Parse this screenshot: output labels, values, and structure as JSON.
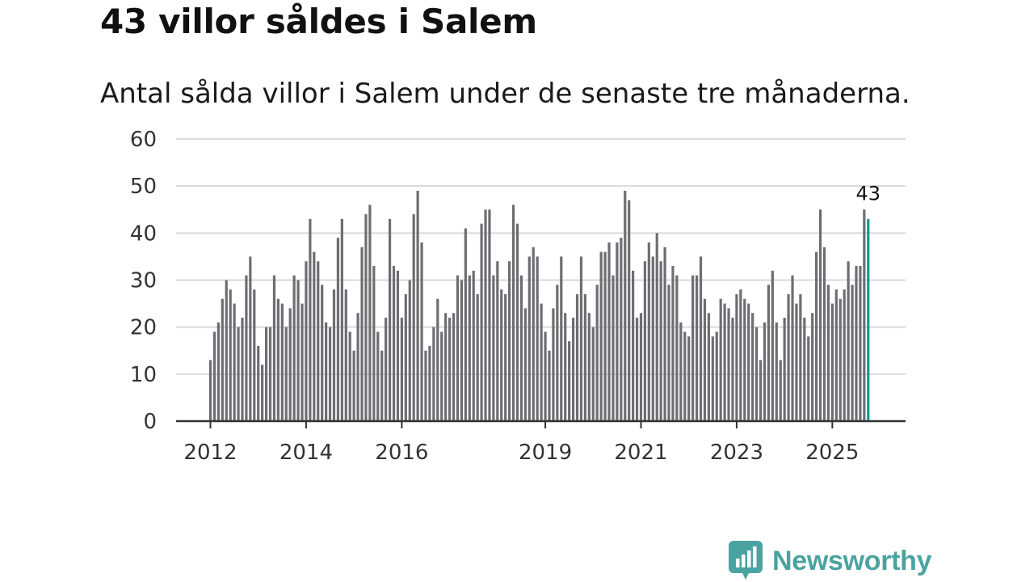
{
  "title": "43 villor såldes i Salem",
  "subtitle": "Antal sålda villor i Salem under de senaste tre månaderna.",
  "brand": {
    "name": "Newsworthy",
    "color": "#4aa3a0",
    "icon": "newsworthy-logo-icon"
  },
  "colors": {
    "bar": "#6e6d72",
    "highlight": "#16968e",
    "grid": "#d9d9d9",
    "axis": "#333333"
  },
  "chart_data": {
    "type": "bar",
    "title": "Antal sålda villor i Salem",
    "xlabel": "",
    "ylabel": "",
    "ylim": [
      0,
      60
    ],
    "yticks": [
      0,
      10,
      20,
      30,
      40,
      50,
      60
    ],
    "start": {
      "year": 2012,
      "month": 1
    },
    "frequency": "monthly",
    "xticks": [
      {
        "label": "2012",
        "index": 0
      },
      {
        "label": "2014",
        "index": 24
      },
      {
        "label": "2016",
        "index": 48
      },
      {
        "label": "2019",
        "index": 84
      },
      {
        "label": "2021",
        "index": 108
      },
      {
        "label": "2023",
        "index": 132
      },
      {
        "label": "2025",
        "index": 156
      }
    ],
    "values": [
      13,
      19,
      21,
      26,
      30,
      28,
      25,
      20,
      22,
      31,
      35,
      28,
      16,
      12,
      20,
      20,
      31,
      26,
      25,
      20,
      24,
      31,
      30,
      25,
      34,
      43,
      36,
      34,
      29,
      21,
      20,
      28,
      39,
      43,
      28,
      19,
      15,
      23,
      37,
      44,
      46,
      33,
      19,
      15,
      22,
      43,
      33,
      32,
      22,
      27,
      30,
      44,
      49,
      38,
      15,
      16,
      20,
      26,
      19,
      23,
      22,
      23,
      31,
      30,
      41,
      31,
      32,
      27,
      42,
      45,
      45,
      31,
      34,
      28,
      27,
      34,
      46,
      42,
      31,
      24,
      35,
      37,
      35,
      25,
      19,
      15,
      24,
      29,
      35,
      23,
      17,
      22,
      27,
      35,
      27,
      23,
      20,
      29,
      36,
      36,
      38,
      31,
      38,
      39,
      49,
      47,
      32,
      22,
      23,
      34,
      38,
      35,
      40,
      34,
      37,
      29,
      33,
      31,
      21,
      19,
      18,
      31,
      31,
      35,
      26,
      23,
      18,
      19,
      26,
      25,
      24,
      22,
      27,
      28,
      26,
      25,
      23,
      20,
      13,
      21,
      29,
      32,
      21,
      13,
      22,
      27,
      31,
      25,
      27,
      22,
      18,
      23,
      36,
      45,
      37,
      29,
      25,
      28,
      26,
      28,
      34,
      29,
      33,
      33,
      45,
      43
    ],
    "highlight_index": 165,
    "annotation": "43"
  }
}
